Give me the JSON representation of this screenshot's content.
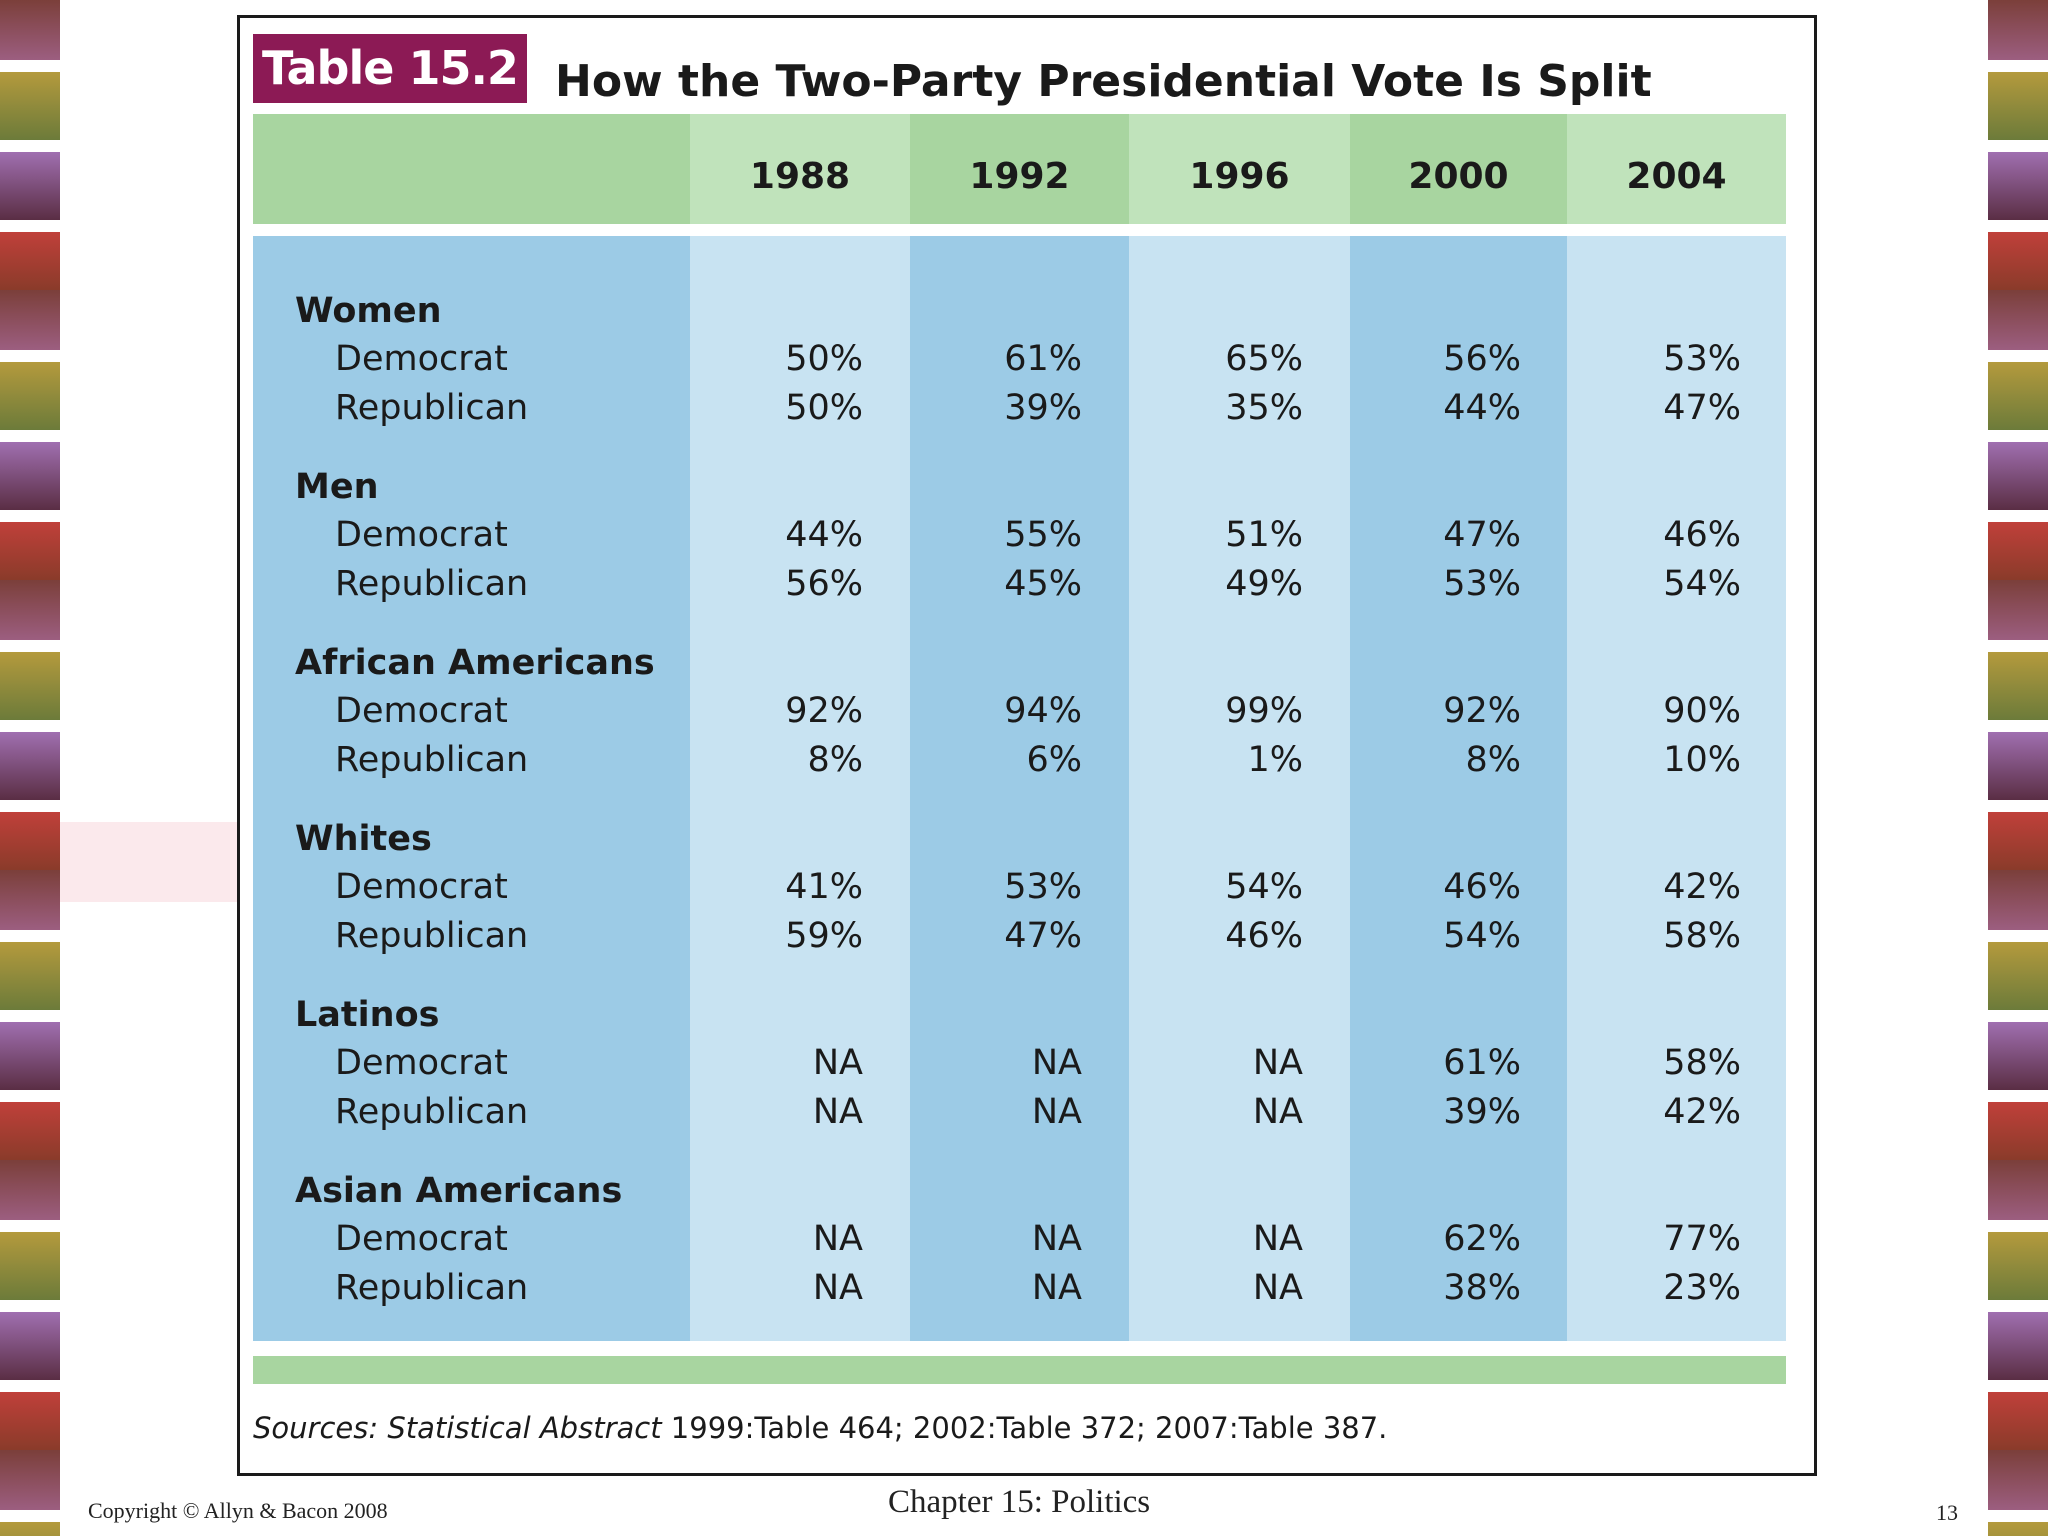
{
  "title_badge": "Table 15.2",
  "title": "How the Two-Party Presidential Vote Is Split",
  "years": [
    "1988",
    "1992",
    "1996",
    "2000",
    "2004"
  ],
  "groups": [
    {
      "name": "Women",
      "rows": [
        {
          "label": "Democrat",
          "values": [
            "50%",
            "61%",
            "65%",
            "56%",
            "53%"
          ]
        },
        {
          "label": "Republican",
          "values": [
            "50%",
            "39%",
            "35%",
            "44%",
            "47%"
          ]
        }
      ]
    },
    {
      "name": "Men",
      "rows": [
        {
          "label": "Democrat",
          "values": [
            "44%",
            "55%",
            "51%",
            "47%",
            "46%"
          ]
        },
        {
          "label": "Republican",
          "values": [
            "56%",
            "45%",
            "49%",
            "53%",
            "54%"
          ]
        }
      ]
    },
    {
      "name": "African Americans",
      "rows": [
        {
          "label": "Democrat",
          "values": [
            "92%",
            "94%",
            "99%",
            "92%",
            "90%"
          ]
        },
        {
          "label": "Republican",
          "values": [
            "8%",
            "6%",
            "1%",
            "8%",
            "10%"
          ]
        }
      ]
    },
    {
      "name": "Whites",
      "rows": [
        {
          "label": "Democrat",
          "values": [
            "41%",
            "53%",
            "54%",
            "46%",
            "42%"
          ]
        },
        {
          "label": "Republican",
          "values": [
            "59%",
            "47%",
            "46%",
            "54%",
            "58%"
          ]
        }
      ]
    },
    {
      "name": "Latinos",
      "rows": [
        {
          "label": "Democrat",
          "values": [
            "NA",
            "NA",
            "NA",
            "61%",
            "58%"
          ]
        },
        {
          "label": "Republican",
          "values": [
            "NA",
            "NA",
            "NA",
            "39%",
            "42%"
          ]
        }
      ]
    },
    {
      "name": "Asian Americans",
      "rows": [
        {
          "label": "Democrat",
          "values": [
            "NA",
            "NA",
            "NA",
            "62%",
            "77%"
          ]
        },
        {
          "label": "Republican",
          "values": [
            "NA",
            "NA",
            "NA",
            "38%",
            "23%"
          ]
        }
      ]
    }
  ],
  "sources": {
    "prefix": "Sources: Statistical Abstract",
    "rest": " 1999:Table 464; 2002:Table 372; 2007:Table 387."
  },
  "footer": {
    "copyright": "Copyright © Allyn & Bacon 2008",
    "chapter": "Chapter 15: Politics",
    "page": "13"
  }
}
